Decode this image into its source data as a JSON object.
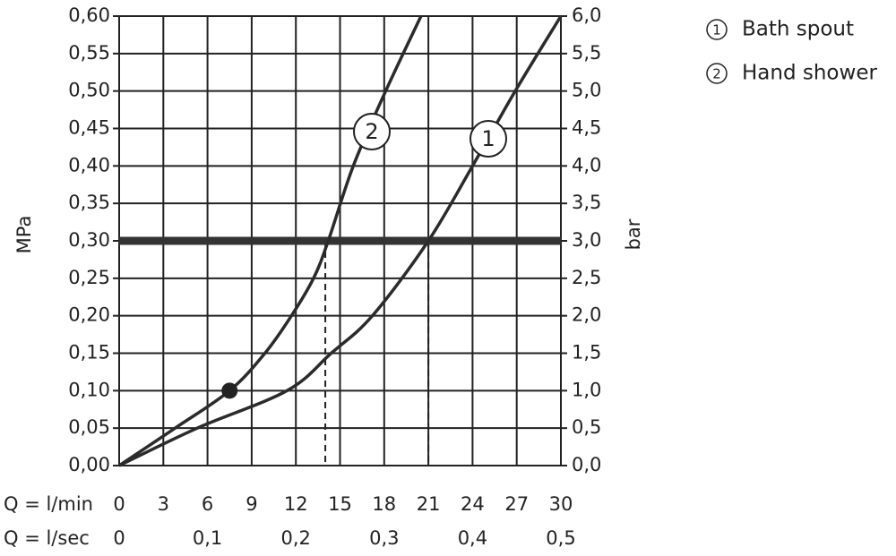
{
  "chart_data": {
    "type": "line",
    "y_label": "MPa",
    "y2_label": "bar",
    "x_label": "Q = l/min",
    "x2_label": "Q = l/sec",
    "xlim": [
      0,
      30
    ],
    "xticks": [
      0,
      3,
      6,
      9,
      12,
      15,
      18,
      21,
      24,
      27,
      30
    ],
    "x2lim": [
      0,
      0.5
    ],
    "x2ticks": [
      {
        "value": 0,
        "label": "0"
      },
      {
        "value": 0.1,
        "label": "0,1"
      },
      {
        "value": 0.2,
        "label": "0,2"
      },
      {
        "value": 0.3,
        "label": "0,3"
      },
      {
        "value": 0.4,
        "label": "0,4"
      },
      {
        "value": 0.5,
        "label": "0,5"
      }
    ],
    "ylim": [
      0,
      0.6
    ],
    "yticks": [
      {
        "value": 0,
        "label": "0,00"
      },
      {
        "value": 0.05,
        "label": "0,05"
      },
      {
        "value": 0.1,
        "label": "0,10"
      },
      {
        "value": 0.15,
        "label": "0,15"
      },
      {
        "value": 0.2,
        "label": "0,20"
      },
      {
        "value": 0.25,
        "label": "0,25"
      },
      {
        "value": 0.3,
        "label": "0,30"
      },
      {
        "value": 0.35,
        "label": "0,35"
      },
      {
        "value": 0.4,
        "label": "0,40"
      },
      {
        "value": 0.45,
        "label": "0,45"
      },
      {
        "value": 0.5,
        "label": "0,50"
      },
      {
        "value": 0.55,
        "label": "0,55"
      },
      {
        "value": 0.6,
        "label": "0,60"
      }
    ],
    "y2lim": [
      0,
      6
    ],
    "y2ticks": [
      {
        "value": 0,
        "label": "0,0"
      },
      {
        "value": 0.5,
        "label": "0,5"
      },
      {
        "value": 1,
        "label": "1,0"
      },
      {
        "value": 1.5,
        "label": "1,5"
      },
      {
        "value": 2,
        "label": "2,0"
      },
      {
        "value": 2.5,
        "label": "2,5"
      },
      {
        "value": 3,
        "label": "3,0"
      },
      {
        "value": 3.5,
        "label": "3,5"
      },
      {
        "value": 4,
        "label": "4,0"
      },
      {
        "value": 4.5,
        "label": "4,5"
      },
      {
        "value": 5,
        "label": "5,0"
      },
      {
        "value": 5.5,
        "label": "5,5"
      },
      {
        "value": 6,
        "label": "6,0"
      }
    ],
    "grid": true,
    "color": "#2b2b2b",
    "reference_line": 0.3,
    "reference_x": [
      14,
      21
    ],
    "highlight_point": {
      "x": 7.5,
      "y": 0.1
    },
    "series": [
      {
        "name": "Bath spout",
        "marker_label": "1",
        "x": [
          0,
          5.3,
          11.4,
          14.4,
          17.2,
          21,
          24,
          26.9,
          30
        ],
        "values": [
          0,
          0.05,
          0.1,
          0.15,
          0.2,
          0.3,
          0.4,
          0.5,
          0.6
        ]
      },
      {
        "name": "Hand shower",
        "marker_label": "2",
        "x": [
          0,
          3.8,
          7.5,
          9.9,
          11.7,
          13.2,
          14.2,
          15.9,
          18.1,
          20.5
        ],
        "values": [
          0,
          0.05,
          0.1,
          0.15,
          0.2,
          0.25,
          0.3,
          0.4,
          0.5,
          0.6
        ]
      }
    ]
  }
}
